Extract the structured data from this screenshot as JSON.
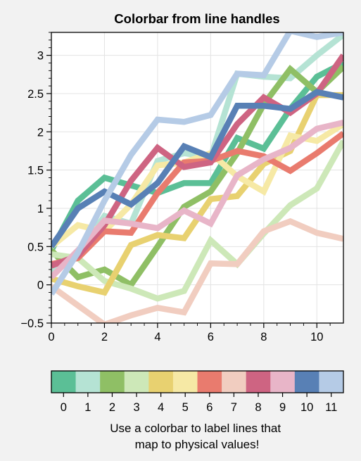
{
  "chart_data": {
    "type": "line",
    "title": "Colorbar from line handles",
    "xlabel": "",
    "ylabel": "",
    "xlim": [
      0,
      11
    ],
    "ylim": [
      -0.5,
      3.3
    ],
    "grid": true,
    "x": [
      0,
      1,
      2,
      3,
      4,
      5,
      6,
      7,
      8,
      9,
      10,
      11
    ],
    "x_ticks": [
      0,
      2,
      4,
      6,
      8,
      10
    ],
    "y_ticks": [
      -0.5,
      0,
      0.5,
      1,
      1.5,
      2,
      2.5,
      3
    ],
    "x_tick_labels": [
      "0",
      "2",
      "4",
      "6",
      "8",
      "10"
    ],
    "y_tick_labels": [
      "−0.5",
      "0",
      "0.5",
      "1",
      "1.5",
      "2",
      "2.5",
      "3"
    ],
    "series": [
      {
        "color": "#5bbf96",
        "values": [
          0.45,
          1.1,
          1.4,
          1.3,
          1.2,
          1.33,
          1.33,
          1.92,
          1.78,
          2.3,
          2.72,
          2.9
        ]
      },
      {
        "color": "#b5e3d4",
        "values": [
          0.18,
          0.4,
          0.9,
          0.8,
          1.62,
          1.72,
          1.67,
          2.76,
          2.72,
          2.7,
          3.0,
          3.27
        ]
      },
      {
        "color": "#8fbf65",
        "values": [
          0.45,
          0.1,
          0.2,
          0.0,
          0.5,
          1.02,
          1.22,
          1.72,
          2.36,
          2.82,
          2.52,
          2.85
        ]
      },
      {
        "color": "#cde8b8",
        "values": [
          0.4,
          0.35,
          0.05,
          -0.05,
          -0.18,
          -0.08,
          0.58,
          0.27,
          0.67,
          1.04,
          1.26,
          1.88
        ]
      },
      {
        "color": "#e8d170",
        "values": [
          0.08,
          -0.02,
          -0.1,
          0.52,
          0.65,
          0.61,
          1.12,
          1.16,
          1.58,
          1.75,
          2.48,
          2.48
        ]
      },
      {
        "color": "#f6e9a5",
        "values": [
          0.5,
          0.78,
          0.7,
          1.05,
          1.56,
          1.6,
          1.72,
          1.42,
          1.22,
          1.95,
          1.88,
          2.1
        ]
      },
      {
        "color": "#e97b6e",
        "values": [
          0.27,
          0.35,
          0.7,
          0.68,
          1.2,
          1.6,
          1.62,
          1.75,
          1.68,
          1.49,
          1.72,
          1.98
        ]
      },
      {
        "color": "#f1cdc0",
        "values": [
          -0.02,
          -0.27,
          -0.52,
          -0.4,
          -0.3,
          -0.36,
          0.28,
          0.27,
          0.7,
          0.83,
          0.68,
          0.6
        ]
      },
      {
        "color": "#ce6482",
        "values": [
          0.25,
          0.38,
          0.78,
          1.36,
          1.79,
          1.54,
          1.6,
          2.1,
          2.45,
          2.25,
          2.5,
          3.0
        ]
      },
      {
        "color": "#e8b5c8",
        "values": [
          0.1,
          0.45,
          0.84,
          0.8,
          0.74,
          0.97,
          0.8,
          1.43,
          1.64,
          1.79,
          2.04,
          2.12
        ]
      },
      {
        "color": "#5880b5",
        "values": [
          0.5,
          1.0,
          1.22,
          1.05,
          1.33,
          1.81,
          1.67,
          2.34,
          2.34,
          2.3,
          2.52,
          2.45
        ]
      },
      {
        "color": "#b5cbe6",
        "values": [
          -0.12,
          0.42,
          1.1,
          1.7,
          2.16,
          2.13,
          2.22,
          2.76,
          2.74,
          3.32,
          3.24,
          3.3
        ]
      }
    ],
    "colorbar": {
      "ticks": [
        "0",
        "1",
        "2",
        "3",
        "4",
        "5",
        "6",
        "7",
        "8",
        "9",
        "10",
        "11"
      ],
      "label": "Use a colorbar to label lines that map to physical values!"
    }
  }
}
